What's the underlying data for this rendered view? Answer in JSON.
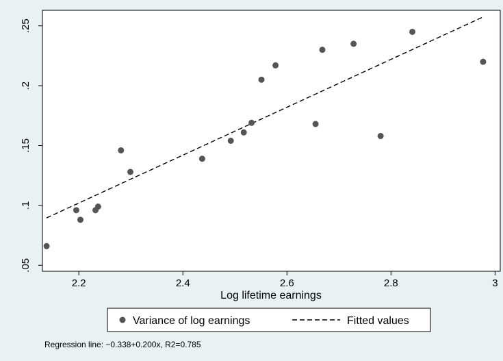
{
  "chart_data": {
    "type": "scatter",
    "xlabel": "Log lifetime earnings",
    "ylabel": "",
    "xlim": [
      2.13,
      3.01
    ],
    "ylim": [
      0.045,
      0.263
    ],
    "x_ticks": [
      2.2,
      2.4,
      2.6,
      2.8,
      3.0
    ],
    "x_tick_labels": [
      "2.2",
      "2.4",
      "2.6",
      "2.8",
      "3"
    ],
    "y_ticks": [
      0.05,
      0.1,
      0.15,
      0.2,
      0.25
    ],
    "y_tick_labels": [
      ".05",
      ".1",
      ".15",
      ".2",
      ".25"
    ],
    "grid": false,
    "legend_position": "bottom",
    "series": [
      {
        "name": "Variance of log earnings",
        "kind": "scatter",
        "color": "#555555",
        "points": [
          [
            2.138,
            0.066
          ],
          [
            2.195,
            0.096
          ],
          [
            2.203,
            0.088
          ],
          [
            2.232,
            0.096
          ],
          [
            2.237,
            0.099
          ],
          [
            2.281,
            0.146
          ],
          [
            2.299,
            0.128
          ],
          [
            2.437,
            0.139
          ],
          [
            2.492,
            0.154
          ],
          [
            2.517,
            0.161
          ],
          [
            2.532,
            0.169
          ],
          [
            2.551,
            0.205
          ],
          [
            2.578,
            0.217
          ],
          [
            2.655,
            0.168
          ],
          [
            2.668,
            0.23
          ],
          [
            2.728,
            0.235
          ],
          [
            2.78,
            0.158
          ],
          [
            2.841,
            0.245
          ],
          [
            2.977,
            0.22
          ]
        ]
      },
      {
        "name": "Fitted values",
        "kind": "line",
        "style": "dashed",
        "color": "#000000",
        "intercept": -0.338,
        "slope": 0.2,
        "x_range": [
          2.138,
          2.977
        ]
      }
    ],
    "note": "Regression line: −0.338+0.200x, R2=0.785"
  }
}
